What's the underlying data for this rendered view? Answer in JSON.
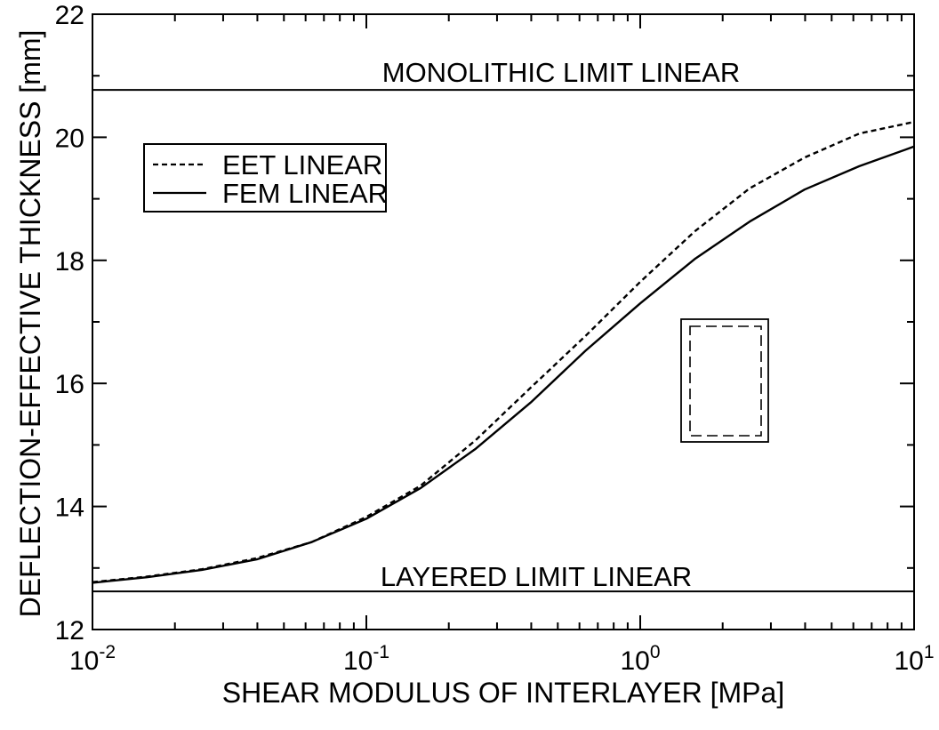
{
  "chart_data": {
    "type": "line",
    "xlabel": "SHEAR MODULUS OF INTERLAYER [MPa]",
    "ylabel": "DEFLECTION-EFFECTIVE THICKNESS [mm]",
    "xscale": "log",
    "xlim": [
      0.01,
      10
    ],
    "ylim": [
      12,
      22
    ],
    "x_ticks": [
      {
        "base": "10",
        "exp": "-2",
        "value": 0.01
      },
      {
        "base": "10",
        "exp": "-1",
        "value": 0.1
      },
      {
        "base": "10",
        "exp": "0",
        "value": 1
      },
      {
        "base": "10",
        "exp": "1",
        "value": 10
      }
    ],
    "y_ticks": [
      "12",
      "14",
      "16",
      "18",
      "20",
      "22"
    ],
    "grid": false,
    "legend_position": "upper-left",
    "series": [
      {
        "name": "EET LINEAR",
        "style": "dashed",
        "x": [
          0.01,
          0.0158,
          0.0251,
          0.0398,
          0.0631,
          0.1,
          0.158,
          0.251,
          0.398,
          0.631,
          1,
          1.58,
          2.51,
          3.98,
          6.31,
          10
        ],
        "y": [
          12.77,
          12.86,
          12.98,
          13.16,
          13.42,
          13.83,
          14.34,
          15.08,
          15.93,
          16.77,
          17.65,
          18.47,
          19.17,
          19.67,
          20.06,
          20.25
        ]
      },
      {
        "name": "FEM LINEAR",
        "style": "solid",
        "x": [
          0.01,
          0.0158,
          0.0251,
          0.0398,
          0.0631,
          0.1,
          0.158,
          0.251,
          0.398,
          0.631,
          1,
          1.58,
          2.51,
          3.98,
          6.31,
          10
        ],
        "y": [
          12.76,
          12.85,
          12.97,
          13.14,
          13.42,
          13.8,
          14.3,
          14.94,
          15.69,
          16.53,
          17.3,
          18.02,
          18.63,
          19.15,
          19.53,
          19.85
        ]
      }
    ],
    "reference_lines": [
      {
        "label": "MONOLITHIC LIMIT LINEAR",
        "y": 20.77
      },
      {
        "label": "LAYERED LIMIT LINEAR",
        "y": 12.62
      }
    ]
  }
}
